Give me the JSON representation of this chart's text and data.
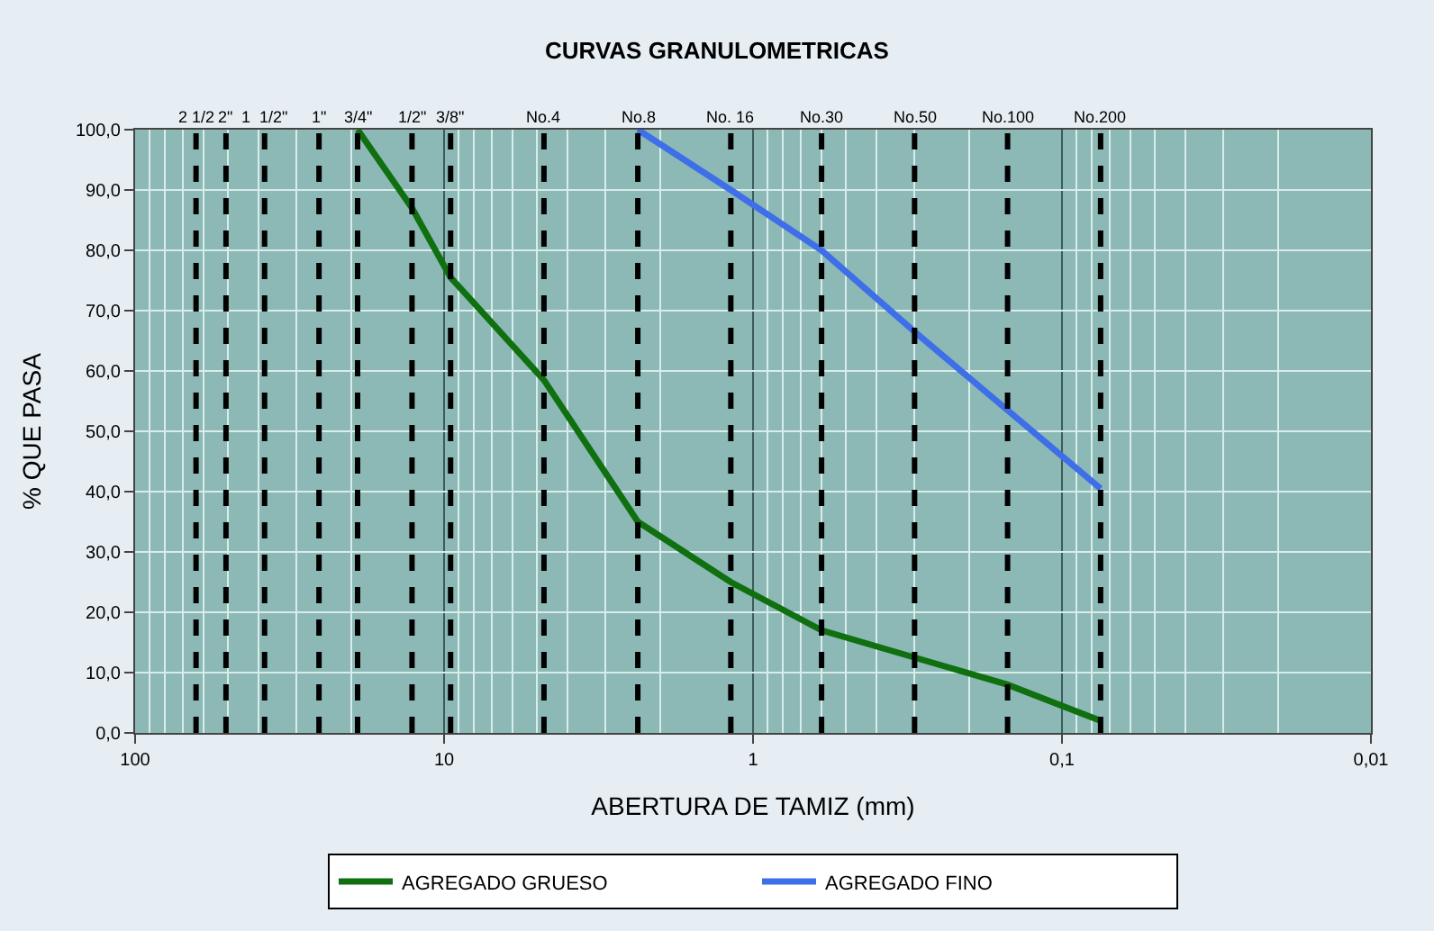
{
  "chart_data": {
    "type": "line",
    "title": "CURVAS GRANULOMETRICAS",
    "xlabel": "ABERTURA DE TAMIZ (mm)",
    "ylabel": "% QUE PASA",
    "log": "x",
    "grid": true,
    "legend": "bottom",
    "marker": "none",
    "line_style": "solid",
    "xlim": [
      100,
      0.01
    ],
    "xticks": [
      100,
      10,
      1,
      {
        "value": 0.1,
        "label": "0,1"
      },
      {
        "value": 0.01,
        "label": "0,01"
      }
    ],
    "annotations": [
      "2 1/2",
      "2\"",
      "1  1/2\"",
      "1\"",
      "3/4\"",
      "1/2\"",
      "3/8\"",
      "No.4",
      "No.8",
      "No. 16",
      "No.30",
      "No.50",
      "No.100",
      "No.200"
    ],
    "ylim": [
      0,
      100
    ],
    "yticks": [
      {
        "value": 0,
        "label": "0,0"
      },
      {
        "value": 10,
        "label": "10,0"
      },
      {
        "value": 20,
        "label": "20,0"
      },
      {
        "value": 30,
        "label": "30,0"
      },
      {
        "value": 40,
        "label": "40,0"
      },
      {
        "value": 50,
        "label": "50,0"
      },
      {
        "value": 60,
        "label": "60,0"
      },
      {
        "value": 70,
        "label": "70,0"
      },
      {
        "value": 80,
        "label": "80,0"
      },
      {
        "value": 90,
        "label": "90,0"
      },
      {
        "value": 100,
        "label": "100,0"
      }
    ],
    "series": [
      {
        "name": "AGREGADO GRUESO",
        "color": "#107010",
        "x": [
          19.05,
          12.7,
          9.525,
          4.75,
          2.36,
          1.18,
          0.6,
          0.3,
          0.15,
          0.075
        ],
        "values": [
          100,
          87,
          75.5,
          58.5,
          35,
          25,
          17,
          12.5,
          8,
          2
        ]
      },
      {
        "name": "AGREGADO FINO",
        "color": "#3f6fe8",
        "x": [
          2.36,
          1.18,
          0.6,
          0.3,
          0.15,
          0.075
        ],
        "values": [
          100,
          90,
          80,
          66.5,
          53.5,
          40.5
        ]
      }
    ],
    "ref_lines": [
      {
        "axis": "x",
        "value": 63.5,
        "color": "#000000",
        "line_style": "dashed"
      },
      {
        "axis": "x",
        "value": 50.8,
        "color": "#000000",
        "line_style": "dashed"
      },
      {
        "axis": "x",
        "value": 38.1,
        "color": "#000000",
        "line_style": "dashed"
      },
      {
        "axis": "x",
        "value": 25.4,
        "color": "#000000",
        "line_style": "dashed"
      },
      {
        "axis": "x",
        "value": 19.05,
        "color": "#000000",
        "line_style": "dashed"
      },
      {
        "axis": "x",
        "value": 12.7,
        "color": "#000000",
        "line_style": "dashed"
      },
      {
        "axis": "x",
        "value": 9.525,
        "color": "#000000",
        "line_style": "dashed"
      },
      {
        "axis": "x",
        "value": 4.75,
        "color": "#000000",
        "line_style": "dashed"
      },
      {
        "axis": "x",
        "value": 2.36,
        "color": "#000000",
        "line_style": "dashed"
      },
      {
        "axis": "x",
        "value": 1.18,
        "color": "#000000",
        "line_style": "dashed"
      },
      {
        "axis": "x",
        "value": 0.6,
        "color": "#000000",
        "line_style": "dashed"
      },
      {
        "axis": "x",
        "value": 0.3,
        "color": "#000000",
        "line_style": "dashed"
      },
      {
        "axis": "x",
        "value": 0.15,
        "color": "#000000",
        "line_style": "dashed"
      },
      {
        "axis": "x",
        "value": 0.075,
        "color": "#000000",
        "line_style": "dashed"
      }
    ]
  }
}
